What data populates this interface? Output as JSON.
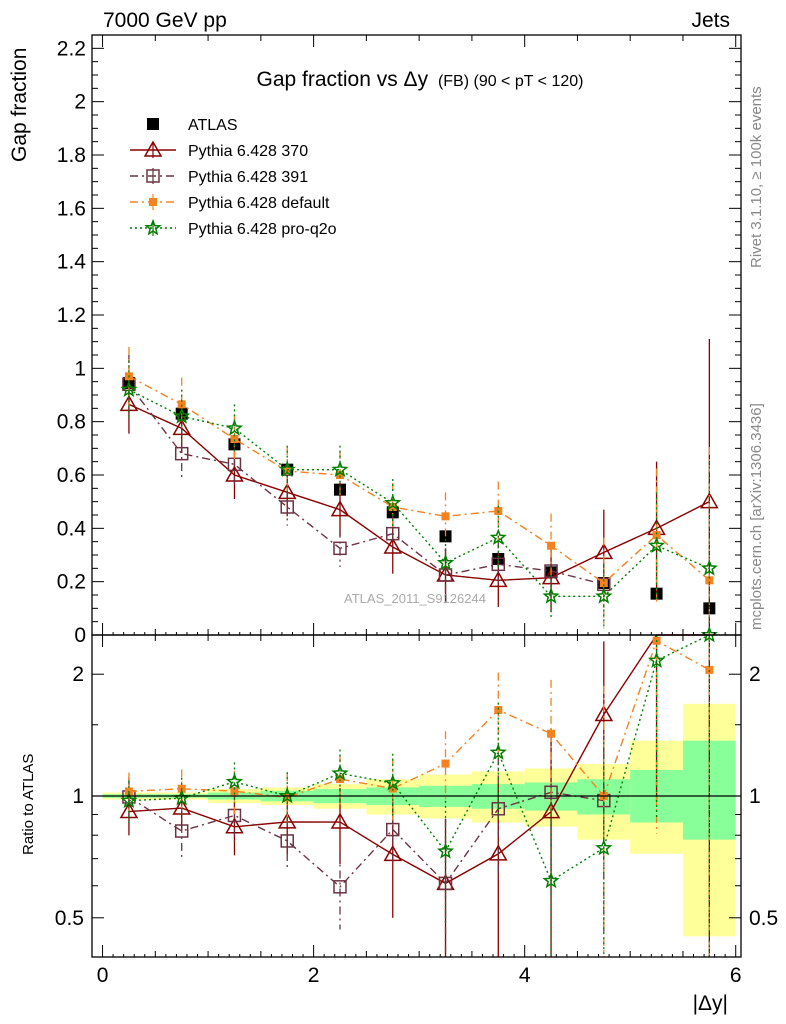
{
  "header": {
    "left": "7000 GeV pp",
    "right": "Jets"
  },
  "side_labels": {
    "rivet": "Rivet 3.1.10, ≥ 100k events",
    "mcplots": "mcplots.cern.ch [arXiv:1306.3436]"
  },
  "watermark": "ATLAS_2011_S9126244",
  "chart_data": {
    "type": "scatter",
    "title": "Gap fraction vs Δy",
    "title_suffix": "(FB) (90 < pT < 120)",
    "xlabel": "|Δy|",
    "ylabel_main": "Gap fraction",
    "ylabel_ratio": "Ratio to ATLAS",
    "xlim": [
      -0.1,
      6.05
    ],
    "ylim_main": [
      0,
      2.25
    ],
    "ylim_ratio_log": [
      0.4,
      2.5
    ],
    "x_ticks": [
      "0",
      "2",
      "4",
      "6"
    ],
    "y_ticks_main": [
      "0",
      "0.2",
      "0.4",
      "0.6",
      "0.8",
      "1",
      "1.2",
      "1.4",
      "1.6",
      "1.8",
      "2",
      "2.2"
    ],
    "y_ticks_ratio": [
      "0.5",
      "1",
      "2"
    ],
    "legend_position": "top-left",
    "x": [
      0.25,
      0.75,
      1.25,
      1.75,
      2.25,
      2.75,
      3.25,
      3.75,
      4.25,
      4.75,
      5.25,
      5.75
    ],
    "band_edges": [
      0,
      0.5,
      1.0,
      1.5,
      2.0,
      2.5,
      3.0,
      3.5,
      4.0,
      4.5,
      5.0,
      5.5,
      6.0
    ],
    "band_yellow": [
      [
        0.98,
        1.02
      ],
      [
        0.98,
        1.02
      ],
      [
        0.96,
        1.04
      ],
      [
        0.95,
        1.05
      ],
      [
        0.93,
        1.07
      ],
      [
        0.9,
        1.1
      ],
      [
        0.88,
        1.13
      ],
      [
        0.86,
        1.15
      ],
      [
        0.84,
        1.17
      ],
      [
        0.78,
        1.2
      ],
      [
        0.72,
        1.37
      ],
      [
        0.45,
        1.69
      ]
    ],
    "band_green": [
      [
        0.99,
        1.01
      ],
      [
        0.99,
        1.01
      ],
      [
        0.98,
        1.02
      ],
      [
        0.97,
        1.03
      ],
      [
        0.96,
        1.04
      ],
      [
        0.95,
        1.05
      ],
      [
        0.94,
        1.06
      ],
      [
        0.93,
        1.07
      ],
      [
        0.92,
        1.08
      ],
      [
        0.9,
        1.1
      ],
      [
        0.86,
        1.16
      ],
      [
        0.78,
        1.37
      ]
    ],
    "series": [
      {
        "name": "ATLAS",
        "color": "#000000",
        "marker": "filled-square",
        "line": "none",
        "values": [
          0.945,
          0.83,
          0.715,
          0.62,
          0.545,
          0.46,
          0.37,
          0.285,
          0.235,
          0.195,
          0.155,
          0.1
        ],
        "errors": [
          0.02,
          0.02,
          0.02,
          0.02,
          0.02,
          0.02,
          0.02,
          0.025,
          0.03,
          0.03,
          0.02,
          0.02
        ]
      },
      {
        "name": "Pythia 6.428 370",
        "color": "#8b0000",
        "marker": "open-triangle",
        "line": "solid",
        "values": [
          0.865,
          0.775,
          0.6,
          0.535,
          0.47,
          0.33,
          0.225,
          0.205,
          0.215,
          0.31,
          0.4,
          0.5
        ],
        "errors": [
          0.11,
          0.09,
          0.09,
          0.09,
          0.1,
          0.1,
          0.1,
          0.1,
          0.13,
          0.16,
          0.25,
          0.61
        ]
      },
      {
        "name": "Pythia 6.428 391",
        "color": "#6b3344",
        "marker": "open-square",
        "line": "dashdot",
        "values": [
          0.94,
          0.68,
          0.64,
          0.48,
          0.325,
          0.38,
          0.225,
          0.265,
          0.24,
          0.19,
          null,
          null
        ],
        "errors": [
          0.11,
          0.1,
          0.09,
          0.07,
          0.07,
          0.07,
          0.1,
          0.09,
          0.1,
          0.1,
          null,
          null
        ]
      },
      {
        "name": "Pythia 6.428 default",
        "color": "#f58220",
        "marker": "filled-square-small",
        "line": "dashdot",
        "values": [
          0.97,
          0.865,
          0.735,
          0.615,
          0.6,
          0.48,
          0.445,
          0.465,
          0.335,
          0.195,
          0.375,
          0.205
        ],
        "errors": [
          0.11,
          0.1,
          0.09,
          0.09,
          0.09,
          0.09,
          0.09,
          0.11,
          0.12,
          0.17,
          0.25,
          0.5
        ]
      },
      {
        "name": "Pythia 6.428 pro-q2o",
        "color": "#007f00",
        "marker": "star",
        "line": "dotted",
        "values": [
          0.92,
          0.82,
          0.775,
          0.62,
          0.62,
          0.495,
          0.27,
          0.365,
          0.145,
          0.145,
          0.335,
          0.25
        ],
        "errors": [
          0.11,
          0.1,
          0.09,
          0.09,
          0.09,
          0.09,
          0.09,
          0.12,
          0.08,
          0.12,
          0.2,
          0.4
        ]
      }
    ]
  }
}
